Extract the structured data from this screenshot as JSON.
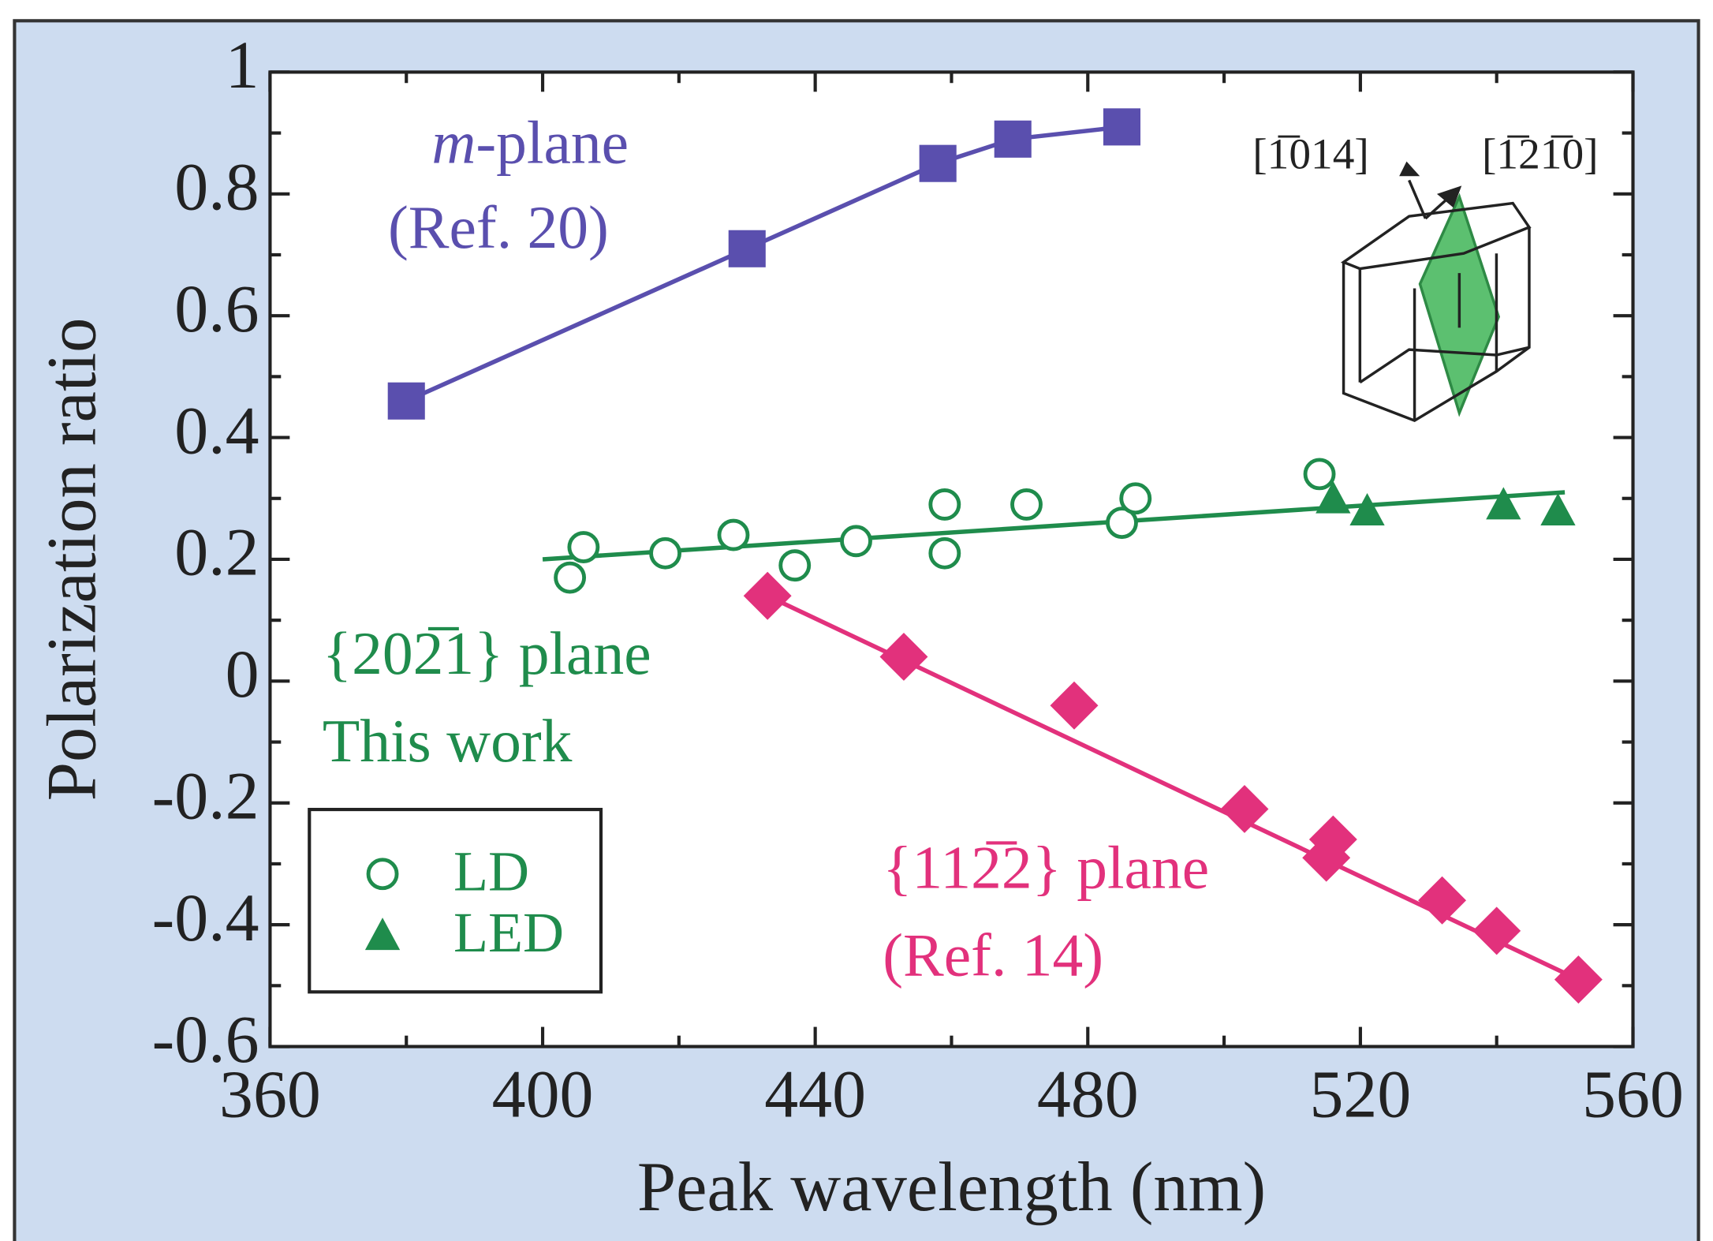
{
  "chart_data": {
    "type": "scatter",
    "xlabel": "Peak wavelength (nm)",
    "ylabel": "Polarization ratio",
    "xlim": [
      360,
      560
    ],
    "xticks": [
      360,
      400,
      440,
      480,
      520,
      560
    ],
    "xminorticks": [
      380,
      420,
      460,
      500,
      540
    ],
    "ylim": [
      -0.6,
      1
    ],
    "yticks": [
      -0.6,
      -0.4,
      -0.2,
      0,
      0.2,
      0.4,
      0.6,
      0.8,
      1
    ],
    "yminorticks": [
      -0.5,
      -0.3,
      -0.1,
      0.1,
      0.3,
      0.5,
      0.7,
      0.9
    ],
    "series": [
      {
        "marker": "square",
        "color": "#5a4fae",
        "line": true,
        "x": [
          380,
          430,
          458,
          469,
          485
        ],
        "values": [
          0.46,
          0.71,
          0.85,
          0.89,
          0.91
        ]
      },
      {
        "marker": "diamond",
        "color": "#e2317c",
        "x": [
          433,
          453,
          478,
          503,
          515,
          516,
          532,
          540,
          552
        ],
        "values": [
          0.14,
          0.04,
          -0.04,
          -0.21,
          -0.29,
          -0.26,
          -0.36,
          -0.41,
          -0.49
        ]
      },
      {
        "name": "LD",
        "marker": "circle",
        "color": "#1f8c4c",
        "x": [
          404,
          406,
          418,
          428,
          437,
          446,
          459,
          459,
          471,
          485,
          487,
          514
        ],
        "values": [
          0.17,
          0.22,
          0.21,
          0.24,
          0.19,
          0.23,
          0.29,
          0.21,
          0.29,
          0.26,
          0.3,
          0.34
        ]
      },
      {
        "name": "LED",
        "marker": "triangle",
        "color": "#1f8c4c",
        "x": [
          516,
          521,
          541,
          549
        ],
        "values": [
          0.3,
          0.28,
          0.29,
          0.28
        ]
      }
    ],
    "fits": [
      {
        "color": "#1f8c4c",
        "x": [
          400,
          550
        ],
        "values": [
          0.2,
          0.31
        ]
      },
      {
        "color": "#e2317c",
        "x": [
          433,
          552
        ],
        "values": [
          0.14,
          -0.49
        ]
      }
    ],
    "annotations": {
      "mplane": [
        "m",
        "-plane"
      ],
      "mref": "(Ref. 20)",
      "green1": "{202̅1} plane",
      "green2": "This work",
      "pink1": "{112̅2} plane",
      "pink2": "(Ref. 14)",
      "dir1": "[1̅014]",
      "dir2": "[1̅21̅0]"
    }
  }
}
